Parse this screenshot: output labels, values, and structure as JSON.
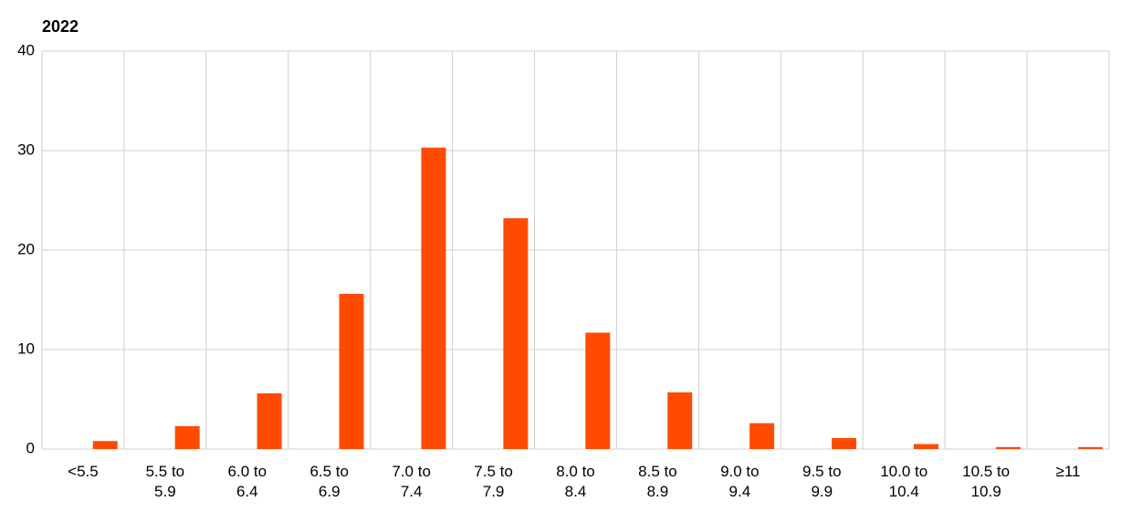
{
  "chart_data": {
    "type": "bar",
    "title": "2022",
    "categories": [
      "<5.5",
      "5.5 to 5.9",
      "6.0 to 6.4",
      "6.5 to 6.9",
      "7.0 to 7.4",
      "7.5 to 7.9",
      "8.0 to 8.4",
      "8.5 to 8.9",
      "9.0 to 9.4",
      "9.5 to 9.9",
      "10.0 to 10.4",
      "10.5 to 10.9",
      "≥11"
    ],
    "values": [
      0.8,
      2.3,
      5.6,
      15.6,
      30.3,
      23.2,
      11.7,
      5.7,
      2.6,
      1.1,
      0.5,
      0.2,
      0.2
    ],
    "color": "#ff4b00",
    "ylim": [
      0,
      40
    ],
    "yticks": [
      0,
      10,
      20,
      30,
      40
    ],
    "grid": true
  }
}
